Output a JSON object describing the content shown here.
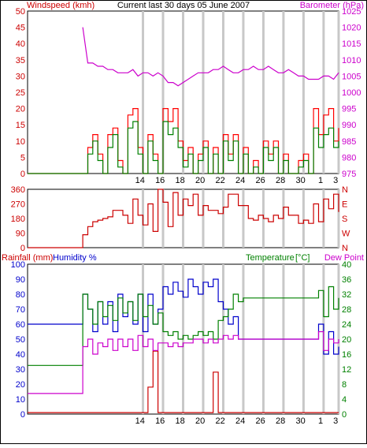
{
  "colors": {
    "frame": "#000000",
    "grid": "#c8c8c8",
    "wind": "#008000",
    "gust": "#ff0000",
    "avg": "#0000cc",
    "baro": "#cc00cc",
    "dir": "#cc0000",
    "rain": "#cc0000",
    "humidity": "#0000cc",
    "temp": "#008000",
    "dew": "#cc00cc"
  },
  "date_ticks": [
    "14",
    "16",
    "18",
    "20",
    "22",
    "24",
    "26",
    "28",
    "30",
    "1",
    "3"
  ],
  "chart_data": [
    {
      "type": "line",
      "title": "Current last 30 days 05 June 2007",
      "ylabel": "Windspeed (kmh)",
      "y2label": "Barometer (hPa)",
      "ylim": [
        0,
        50
      ],
      "y_ticks": [
        "0",
        "5",
        "10",
        "15",
        "20",
        "25",
        "30",
        "35",
        "40",
        "45",
        "50"
      ],
      "y2lim": [
        975,
        1025
      ],
      "y2_ticks": [
        "975",
        "980",
        "985",
        "990",
        "995",
        "1000",
        "1005",
        "1010",
        "1015",
        "1020",
        "1025"
      ],
      "x": [
        0,
        2,
        4,
        5,
        5.5,
        6,
        6.5,
        7,
        7.5,
        8,
        8.5,
        9,
        9.5,
        10,
        10.5,
        11,
        11.5,
        12,
        12.5,
        13,
        13.5,
        14,
        14.5,
        15,
        15.5,
        16,
        16.5,
        17,
        17.5,
        18,
        18.5,
        19,
        19.5,
        20,
        20.5,
        21,
        21.5,
        22,
        22.5,
        23,
        23.5,
        24,
        24.5,
        25,
        25.5,
        26,
        26.5,
        27,
        27.5,
        28,
        28.5,
        29,
        29.5,
        30,
        30.5,
        31
      ],
      "series": [
        {
          "name": "Barometer",
          "values": [
            null,
            null,
            null,
            null,
            1020,
            1009,
            1009,
            1008,
            1008,
            1007,
            1007,
            1006,
            1006,
            1006,
            1007,
            1005,
            1006,
            1006,
            1005,
            1006,
            1005,
            1003,
            1003,
            1002,
            1003,
            1004,
            1005,
            1006,
            1006,
            1006,
            1007,
            1007,
            1008,
            1007,
            1006,
            1006,
            1007,
            1007,
            1008,
            1007,
            1007,
            1008,
            1007,
            1006,
            1006,
            1007,
            1006,
            1005,
            1005,
            1004,
            1004,
            1004,
            1005,
            1005,
            1004,
            1006
          ]
        },
        {
          "name": "Gust",
          "values": [
            0,
            0,
            0,
            0,
            0,
            8,
            12,
            6,
            0,
            12,
            14,
            4,
            0,
            18,
            20,
            8,
            0,
            12,
            6,
            0,
            20,
            16,
            20,
            10,
            4,
            8,
            0,
            6,
            10,
            0,
            8,
            0,
            12,
            6,
            12,
            0,
            8,
            0,
            4,
            0,
            10,
            6,
            10,
            0,
            6,
            0,
            0,
            4,
            6,
            0,
            20,
            12,
            18,
            20,
            10,
            14
          ]
        },
        {
          "name": "Wind",
          "values": [
            0,
            0,
            0,
            0,
            0,
            6,
            10,
            4,
            0,
            8,
            12,
            2,
            0,
            14,
            16,
            6,
            0,
            10,
            4,
            0,
            16,
            12,
            14,
            8,
            2,
            6,
            0,
            4,
            8,
            0,
            6,
            0,
            10,
            4,
            10,
            0,
            6,
            0,
            2,
            0,
            8,
            4,
            8,
            0,
            4,
            0,
            0,
            2,
            4,
            0,
            14,
            8,
            12,
            14,
            8,
            10
          ]
        }
      ]
    },
    {
      "type": "line",
      "ylabel": "",
      "ylim": [
        0,
        360
      ],
      "y_ticks": [
        "0",
        "90",
        "180",
        "270",
        "360"
      ],
      "y2_ticks": [
        "N",
        "W",
        "S",
        "E",
        "N"
      ],
      "x": [
        0,
        2,
        4,
        5,
        5.5,
        6,
        6.5,
        7,
        7.5,
        8,
        8.5,
        9,
        9.5,
        10,
        10.5,
        11,
        11.5,
        12,
        12.5,
        13,
        13.5,
        14,
        14.5,
        15,
        15.5,
        16,
        16.5,
        17,
        17.5,
        18,
        18.5,
        19,
        19.5,
        20,
        20.5,
        21,
        21.5,
        22,
        22.5,
        23,
        23.5,
        24,
        24.5,
        25,
        25.5,
        26,
        26.5,
        27,
        27.5,
        28,
        28.5,
        29,
        29.5,
        30,
        30.5,
        31
      ],
      "series": [
        {
          "name": "Direction",
          "values": [
            0,
            0,
            0,
            0,
            80,
            130,
            160,
            170,
            180,
            190,
            230,
            230,
            200,
            150,
            300,
            200,
            140,
            270,
            100,
            360,
            280,
            130,
            340,
            200,
            300,
            260,
            330,
            200,
            260,
            230,
            230,
            210,
            250,
            330,
            330,
            260,
            260,
            180,
            170,
            200,
            180,
            160,
            200,
            180,
            250,
            200,
            200,
            150,
            170,
            150,
            270,
            160,
            300,
            240,
            330,
            220
          ]
        }
      ]
    },
    {
      "type": "line",
      "ylabel": "Rainfall (mm)",
      "y1label": "Humidity %",
      "ylim": [
        0,
        100
      ],
      "y_ticks": [
        "0",
        "10",
        "20",
        "30",
        "40",
        "50",
        "60",
        "70",
        "80",
        "90",
        "100"
      ],
      "y2label": "Temperature",
      "y3label": "Dew Point",
      "y2lim": [
        0,
        40
      ],
      "y2_ticks": [
        "0",
        "4",
        "8",
        "12",
        "16",
        "20",
        "24",
        "28",
        "32",
        "36",
        "40"
      ],
      "x": [
        0,
        2,
        4,
        5,
        5.5,
        6,
        6.5,
        7,
        7.5,
        8,
        8.5,
        9,
        9.5,
        10,
        10.5,
        11,
        11.5,
        12,
        12.5,
        13,
        13.5,
        14,
        14.5,
        15,
        15.5,
        16,
        16.5,
        17,
        17.5,
        18,
        18.5,
        19,
        19.5,
        20,
        20.5,
        21,
        21.5,
        22,
        22.5,
        23,
        23.5,
        24,
        24.5,
        25,
        25.5,
        26,
        26.5,
        27,
        27.5,
        28,
        28.5,
        29,
        29.5,
        30,
        30.5,
        31
      ],
      "series": [
        {
          "name": "Humidity",
          "values": [
            60,
            60,
            60,
            60,
            80,
            70,
            55,
            75,
            60,
            75,
            55,
            80,
            65,
            75,
            60,
            80,
            55,
            80,
            60,
            70,
            85,
            80,
            88,
            82,
            78,
            90,
            85,
            80,
            88,
            85,
            90,
            75,
            70,
            60,
            65,
            50,
            50,
            50,
            50,
            50,
            50,
            50,
            50,
            50,
            50,
            50,
            50,
            50,
            50,
            50,
            50,
            60,
            40,
            55,
            40,
            45
          ]
        },
        {
          "name": "Temperature",
          "values": [
            13,
            13,
            13,
            13,
            32,
            28,
            24,
            30,
            26,
            29,
            25,
            31,
            27,
            30,
            25,
            32,
            26,
            29,
            24,
            27,
            22,
            21,
            22,
            20,
            21,
            20,
            21,
            22,
            21,
            22,
            20,
            25,
            26,
            28,
            32,
            30,
            31,
            31,
            31,
            31,
            31,
            31,
            31,
            31,
            31,
            31,
            31,
            31,
            31,
            31,
            31,
            33,
            26,
            34,
            28,
            31
          ]
        },
        {
          "name": "Dew Point",
          "values": [
            5.5,
            5.5,
            5.5,
            5.5,
            18,
            20,
            16,
            19,
            18,
            20,
            17,
            20,
            18,
            20,
            17,
            21,
            18,
            20,
            17,
            19,
            19,
            18,
            19,
            18,
            19,
            19,
            20,
            20,
            19,
            20,
            19,
            20,
            21,
            20,
            21,
            20,
            20,
            20,
            20,
            20,
            20,
            20,
            20,
            20,
            20,
            20,
            20,
            20,
            20,
            20,
            20,
            22,
            17,
            20,
            19,
            20
          ]
        },
        {
          "name": "Rainfall",
          "values": [
            1,
            1,
            1,
            1,
            1,
            1,
            1,
            1,
            1,
            1,
            1,
            1,
            1,
            1,
            1,
            1,
            1,
            18,
            42,
            1,
            1,
            1,
            1,
            1,
            1,
            1,
            1,
            1,
            1,
            1,
            28,
            1,
            1,
            1,
            1,
            1,
            1,
            1,
            1,
            1,
            1,
            1,
            1,
            1,
            1,
            1,
            1,
            1,
            1,
            1,
            1,
            1,
            1,
            1,
            1,
            1
          ]
        }
      ]
    }
  ]
}
